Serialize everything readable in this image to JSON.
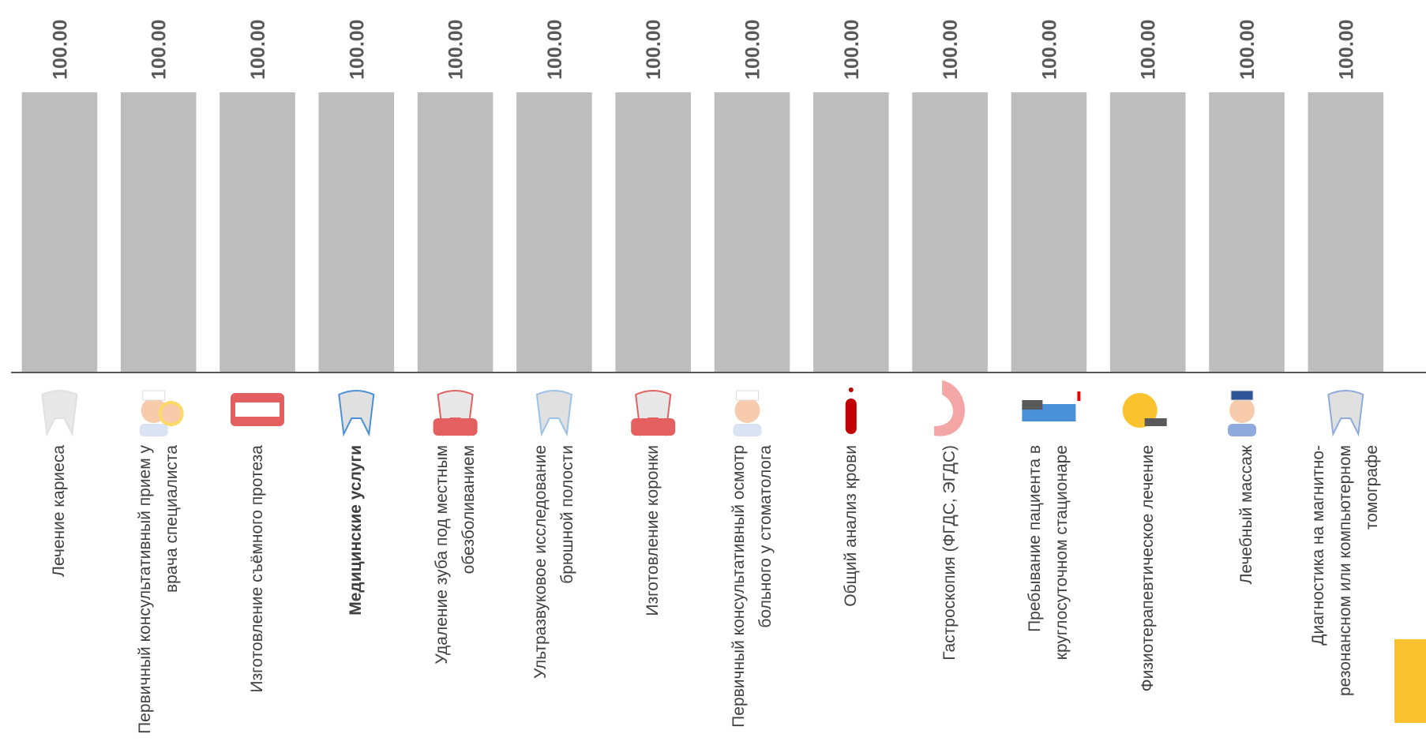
{
  "chart_data": {
    "type": "bar",
    "categories": [
      "Лечение кариеса",
      "Первичный консультативный прием у врача специалиста",
      "Изготовление съёмного протеза",
      "Медицинские услуги",
      "Удаление зуба под местным обезболиванием",
      "Ультразвуковое исследование брюшной полости",
      "Изготовление коронки",
      "Первичный консультативный осмотр больного у стоматолога",
      "Общий анализ крови",
      "Гастроскопия (ФГДС, ЭГДС)",
      "Пребывание пациента в круглосуточном стационаре",
      "Физиотерапевтическое лечение",
      "Лечебный массаж",
      "Диагностика на магнитно-резонансном или компьютерном томографе"
    ],
    "values": [
      100,
      100,
      100,
      100,
      100,
      100,
      100,
      100,
      100,
      100,
      100,
      100,
      100,
      100
    ],
    "value_labels": [
      "100.00",
      "100.00",
      "100.00",
      "100.00",
      "100.00",
      "100.00",
      "100.00",
      "100.00",
      "100.00",
      "100.00",
      "100.00",
      "100.00",
      "100.00",
      "100.00"
    ],
    "color": "#bdbdbd",
    "ylim": [
      0,
      100
    ],
    "bold_category": 3
  }
}
